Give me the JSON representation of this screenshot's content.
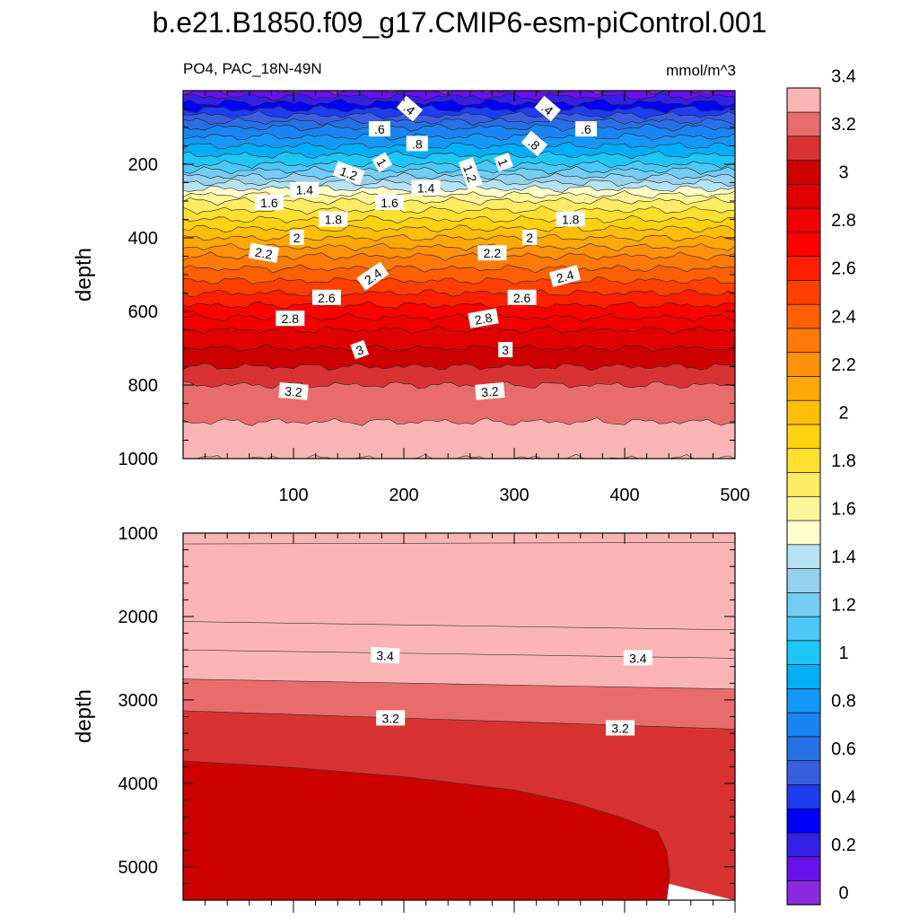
{
  "title": "b.e21.B1850.f09_g17.CMIP6-esm-piControl.001",
  "subtitle_left": "PO4, PAC_18N-49N",
  "subtitle_right": "mmol/m^3",
  "chart_data": [
    {
      "type": "heatmap",
      "panel": "upper",
      "xlabel": "",
      "ylabel": "depth",
      "xlim": [
        0,
        500
      ],
      "ylim": [
        1000,
        0
      ],
      "x_ticks": [
        100,
        200,
        300,
        400,
        500
      ],
      "y_ticks": [
        200,
        400,
        600,
        800,
        1000
      ],
      "contour_interval": 0.2,
      "depth_profile": [
        {
          "depth": 0,
          "value": 0.1
        },
        {
          "depth": 50,
          "value": 0.4
        },
        {
          "depth": 100,
          "value": 0.7
        },
        {
          "depth": 150,
          "value": 0.9
        },
        {
          "depth": 200,
          "value": 1.1
        },
        {
          "depth": 250,
          "value": 1.4
        },
        {
          "depth": 300,
          "value": 1.7
        },
        {
          "depth": 325,
          "value": 1.8
        },
        {
          "depth": 350,
          "value": 1.9
        },
        {
          "depth": 400,
          "value": 2.1
        },
        {
          "depth": 450,
          "value": 2.3
        },
        {
          "depth": 500,
          "value": 2.45
        },
        {
          "depth": 550,
          "value": 2.6
        },
        {
          "depth": 600,
          "value": 2.75
        },
        {
          "depth": 650,
          "value": 2.9
        },
        {
          "depth": 700,
          "value": 3.0
        },
        {
          "depth": 750,
          "value": 3.1
        },
        {
          "depth": 800,
          "value": 3.2
        },
        {
          "depth": 850,
          "value": 3.25
        },
        {
          "depth": 900,
          "value": 3.3
        },
        {
          "depth": 1000,
          "value": 3.4
        }
      ],
      "contour_labels": [
        {
          "text": ".4",
          "x": 205,
          "depth": 50,
          "angle": 40
        },
        {
          "text": ".4",
          "x": 330,
          "depth": 50,
          "angle": 40
        },
        {
          "text": ".6",
          "x": 178,
          "depth": 105,
          "angle": 0
        },
        {
          "text": ".6",
          "x": 365,
          "depth": 105,
          "angle": 0
        },
        {
          "text": ".8",
          "x": 212,
          "depth": 145,
          "angle": 0
        },
        {
          "text": ".8",
          "x": 318,
          "depth": 145,
          "angle": 40
        },
        {
          "text": "1",
          "x": 180,
          "depth": 195,
          "angle": 60
        },
        {
          "text": "1",
          "x": 290,
          "depth": 195,
          "angle": 70
        },
        {
          "text": "1.2",
          "x": 150,
          "depth": 225,
          "angle": 20
        },
        {
          "text": "1.2",
          "x": 260,
          "depth": 225,
          "angle": 70
        },
        {
          "text": "1.4",
          "x": 110,
          "depth": 270,
          "angle": 0
        },
        {
          "text": "1.4",
          "x": 220,
          "depth": 265,
          "angle": 0
        },
        {
          "text": "1.6",
          "x": 78,
          "depth": 305,
          "angle": 0
        },
        {
          "text": "1.6",
          "x": 187,
          "depth": 305,
          "angle": 0
        },
        {
          "text": "1.8",
          "x": 136,
          "depth": 350,
          "angle": 0
        },
        {
          "text": "1.8",
          "x": 351,
          "depth": 350,
          "angle": 0
        },
        {
          "text": "2",
          "x": 103,
          "depth": 400,
          "angle": 0
        },
        {
          "text": "2",
          "x": 314,
          "depth": 400,
          "angle": 0
        },
        {
          "text": "2.2",
          "x": 73,
          "depth": 442,
          "angle": 10
        },
        {
          "text": "2.2",
          "x": 280,
          "depth": 442,
          "angle": 0
        },
        {
          "text": "2.4",
          "x": 172,
          "depth": 505,
          "angle": -35
        },
        {
          "text": "2.4",
          "x": 346,
          "depth": 505,
          "angle": -15
        },
        {
          "text": "2.6",
          "x": 130,
          "depth": 563,
          "angle": 0
        },
        {
          "text": "2.6",
          "x": 307,
          "depth": 563,
          "angle": 0
        },
        {
          "text": "2.8",
          "x": 97,
          "depth": 620,
          "angle": 0
        },
        {
          "text": "2.8",
          "x": 272,
          "depth": 620,
          "angle": -10
        },
        {
          "text": "3",
          "x": 160,
          "depth": 705,
          "angle": -20
        },
        {
          "text": "3",
          "x": 292,
          "depth": 705,
          "angle": 0
        },
        {
          "text": "3.2",
          "x": 100,
          "depth": 818,
          "angle": 5
        },
        {
          "text": "3.2",
          "x": 278,
          "depth": 818,
          "angle": -5
        }
      ]
    },
    {
      "type": "heatmap",
      "panel": "lower",
      "xlabel": "",
      "ylabel": "depth",
      "xlim": [
        0,
        500
      ],
      "ylim": [
        5400,
        1000
      ],
      "y_ticks": [
        1000,
        2000,
        3000,
        4000,
        5000
      ],
      "layers": [
        {
          "value_range": [
            3.4,
            3.5
          ],
          "top_left": 1000,
          "top_right": 1000,
          "bottom_left": 1130,
          "bottom_right": 1110
        },
        {
          "value_range": [
            3.5,
            3.6
          ],
          "top_left": 1130,
          "top_right": 1110,
          "bottom_left": 2060,
          "bottom_right": 2160
        },
        {
          "value_range": [
            3.4,
            3.5
          ],
          "top_left": 2060,
          "top_right": 2160,
          "bottom_left": 2400,
          "bottom_right": 2500
        },
        {
          "value_range": [
            3.3,
            3.4
          ],
          "top_left": 2400,
          "top_right": 2500,
          "bottom_left": 2750,
          "bottom_right": 2870
        },
        {
          "value_range": [
            3.2,
            3.3
          ],
          "top_left": 2750,
          "top_right": 2870,
          "bottom_left": 3130,
          "bottom_right": 3350
        },
        {
          "value_range": [
            3.1,
            3.2
          ],
          "top_left": 3130,
          "top_right": 3350,
          "bottom_left": 3730,
          "bottom_right": 5400
        }
      ],
      "deep_contour_3_1": [
        [
          0,
          3730
        ],
        [
          100,
          3810
        ],
        [
          200,
          3920
        ],
        [
          300,
          4080
        ],
        [
          350,
          4220
        ],
        [
          400,
          4420
        ],
        [
          430,
          4580
        ],
        [
          438,
          4800
        ],
        [
          441,
          5100
        ],
        [
          438,
          5400
        ]
      ],
      "contour_labels": [
        {
          "text": "3.4",
          "x": 183,
          "depth": 2470,
          "angle": 3
        },
        {
          "text": "3.4",
          "x": 412,
          "depth": 2500,
          "angle": 0
        },
        {
          "text": "3.2",
          "x": 188,
          "depth": 3220,
          "angle": 0
        },
        {
          "text": "3.2",
          "x": 396,
          "depth": 3340,
          "angle": 0
        }
      ]
    }
  ],
  "colorbar": {
    "levels": [
      "0",
      "0.2",
      "0.4",
      "0.6",
      "0.8",
      "1",
      "1.2",
      "1.4",
      "1.6",
      "1.8",
      "2",
      "2.2",
      "2.4",
      "2.6",
      "2.8",
      "3",
      "3.2",
      "3.4"
    ],
    "label_values": [
      0,
      0.2,
      0.4,
      0.6,
      0.8,
      1,
      1.2,
      1.4,
      1.6,
      1.8,
      2,
      2.2,
      2.4,
      2.6,
      2.8,
      3,
      3.2,
      3.4
    ],
    "colors": [
      "#8a2be2",
      "#6a10e8",
      "#3520e6",
      "#0000ff",
      "#1e3cf0",
      "#3a5ee0",
      "#2870e6",
      "#1a84f2",
      "#1498f8",
      "#04aef6",
      "#1ec6f6",
      "#4cc8f6",
      "#74ccf2",
      "#96d2f0",
      "#b6e2f4",
      "#ffffcc",
      "#fff59a",
      "#ffec64",
      "#ffe030",
      "#ffd210",
      "#ffbe0a",
      "#ffa808",
      "#ff920a",
      "#ff7a08",
      "#ff6006",
      "#ff4000",
      "#ff2000",
      "#ff0000",
      "#f00000",
      "#e00000",
      "#cc0000",
      "#d93232",
      "#e86c6c",
      "#fab4b4"
    ]
  }
}
